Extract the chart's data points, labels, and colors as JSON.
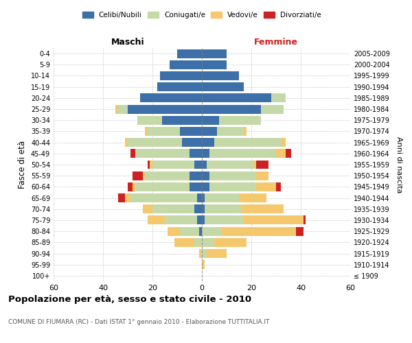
{
  "age_groups": [
    "100+",
    "95-99",
    "90-94",
    "85-89",
    "80-84",
    "75-79",
    "70-74",
    "65-69",
    "60-64",
    "55-59",
    "50-54",
    "45-49",
    "40-44",
    "35-39",
    "30-34",
    "25-29",
    "20-24",
    "15-19",
    "10-14",
    "5-9",
    "0-4"
  ],
  "birth_years": [
    "≤ 1909",
    "1910-1914",
    "1915-1919",
    "1920-1924",
    "1925-1929",
    "1930-1934",
    "1935-1939",
    "1940-1944",
    "1945-1949",
    "1950-1954",
    "1955-1959",
    "1960-1964",
    "1965-1969",
    "1970-1974",
    "1975-1979",
    "1980-1984",
    "1985-1989",
    "1990-1994",
    "1995-1999",
    "2000-2004",
    "2005-2009"
  ],
  "colors": {
    "celibi": "#3d6fa8",
    "coniugati": "#c5d9a8",
    "vedovi": "#f5c86e",
    "divorziati": "#cc2222"
  },
  "male": {
    "celibi": [
      0,
      0,
      0,
      0,
      1,
      2,
      3,
      2,
      5,
      5,
      3,
      5,
      8,
      9,
      16,
      30,
      25,
      18,
      17,
      13,
      10
    ],
    "coniugati": [
      0,
      0,
      0,
      3,
      8,
      13,
      17,
      27,
      22,
      18,
      17,
      22,
      22,
      13,
      10,
      4,
      0,
      0,
      0,
      0,
      0
    ],
    "vedovi": [
      0,
      0,
      1,
      8,
      5,
      7,
      4,
      2,
      1,
      1,
      1,
      0,
      1,
      1,
      0,
      1,
      0,
      0,
      0,
      0,
      0
    ],
    "divorziati": [
      0,
      0,
      0,
      0,
      0,
      0,
      0,
      3,
      2,
      4,
      1,
      2,
      0,
      0,
      0,
      0,
      0,
      0,
      0,
      0,
      0
    ]
  },
  "female": {
    "nubili": [
      0,
      0,
      0,
      0,
      0,
      1,
      1,
      1,
      3,
      3,
      2,
      3,
      5,
      6,
      7,
      24,
      28,
      17,
      15,
      10,
      10
    ],
    "coniugate": [
      0,
      0,
      2,
      5,
      8,
      16,
      15,
      14,
      19,
      19,
      19,
      27,
      27,
      11,
      17,
      9,
      6,
      0,
      0,
      0,
      0
    ],
    "vedove": [
      0,
      1,
      8,
      13,
      30,
      24,
      17,
      11,
      8,
      5,
      1,
      4,
      2,
      1,
      0,
      0,
      0,
      0,
      0,
      0,
      0
    ],
    "divorziate": [
      0,
      0,
      0,
      0,
      3,
      1,
      0,
      0,
      2,
      0,
      5,
      2,
      0,
      0,
      0,
      0,
      0,
      0,
      0,
      0,
      0
    ]
  },
  "xlim": 60,
  "title": "Popolazione per età, sesso e stato civile - 2010",
  "subtitle": "COMUNE DI FIUMARA (RC) - Dati ISTAT 1° gennaio 2010 - Elaborazione TUTTITALIA.IT",
  "xlabel_left": "Maschi",
  "xlabel_right": "Femmine",
  "ylabel_left": "Fasce di età",
  "ylabel_right": "Anni di nascita",
  "legend_labels": [
    "Celibi/Nubili",
    "Coniugati/e",
    "Vedovi/e",
    "Divorziati/e"
  ]
}
